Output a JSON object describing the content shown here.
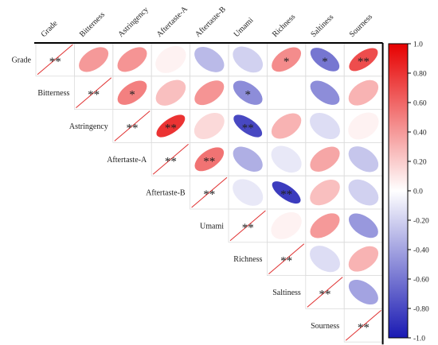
{
  "chart_data": {
    "type": "heatmap",
    "subtype": "correlation-ellipse-upper-triangle",
    "variables": [
      "Grade",
      "Bitterness",
      "Astringency",
      "Aftertaste-A",
      "Aftertaste-B",
      "Umami",
      "Richness",
      "Saltiness",
      "Sourness"
    ],
    "matrix": [
      [
        1.0,
        0.4,
        0.42,
        0.05,
        -0.3,
        -0.2,
        0.45,
        -0.6,
        0.7
      ],
      [
        0.4,
        1.0,
        0.5,
        0.25,
        0.42,
        -0.5,
        0.0,
        -0.5,
        0.3
      ],
      [
        0.42,
        0.5,
        1.0,
        0.8,
        0.15,
        -0.8,
        0.3,
        -0.15,
        0.05
      ],
      [
        0.05,
        0.25,
        0.8,
        1.0,
        0.55,
        -0.35,
        -0.1,
        0.35,
        -0.25
      ],
      [
        -0.3,
        0.42,
        0.15,
        0.55,
        1.0,
        -0.1,
        -0.85,
        0.25,
        -0.2
      ],
      [
        -0.2,
        -0.5,
        -0.8,
        -0.35,
        -0.1,
        1.0,
        0.05,
        0.4,
        -0.45
      ],
      [
        0.45,
        0.0,
        0.3,
        -0.1,
        -0.85,
        0.05,
        1.0,
        -0.15,
        0.3
      ],
      [
        -0.6,
        -0.5,
        -0.15,
        0.35,
        0.25,
        0.4,
        -0.15,
        1.0,
        -0.4
      ],
      [
        0.7,
        0.3,
        0.05,
        -0.25,
        -0.2,
        -0.45,
        0.3,
        -0.4,
        1.0
      ]
    ],
    "significance": [
      [
        "**",
        "",
        "",
        "",
        "",
        "",
        "*",
        "*",
        "**"
      ],
      [
        "",
        "**",
        "*",
        "",
        "",
        "*",
        "",
        "",
        ""
      ],
      [
        "",
        "*",
        "**",
        "**",
        "",
        "**",
        "",
        "",
        ""
      ],
      [
        "",
        "",
        "**",
        "**",
        "**",
        "",
        "",
        "",
        ""
      ],
      [
        "",
        "",
        "",
        "**",
        "**",
        "",
        "**",
        "",
        ""
      ],
      [
        "",
        "*",
        "**",
        "",
        "",
        "**",
        "",
        "",
        ""
      ],
      [
        "*",
        "",
        "",
        "",
        "**",
        "",
        "**",
        "",
        ""
      ],
      [
        "*",
        "",
        "",
        "",
        "",
        "",
        "",
        "**",
        ""
      ],
      [
        "**",
        "",
        "",
        "",
        "",
        "",
        "",
        "",
        "**"
      ]
    ],
    "colorbar": {
      "range": [
        -1.0,
        1.0
      ],
      "ticks": [
        "1.0",
        "0.80",
        "0.60",
        "0.40",
        "0.20",
        "0.0",
        "-0.20",
        "-0.40",
        "-0.60",
        "-0.80",
        "-1.0"
      ],
      "colors": {
        "negative": "#1a1ab3",
        "zero": "#ffffff",
        "positive": "#e60000"
      }
    },
    "diagonal_line_color": "#e03030",
    "grid": true
  }
}
